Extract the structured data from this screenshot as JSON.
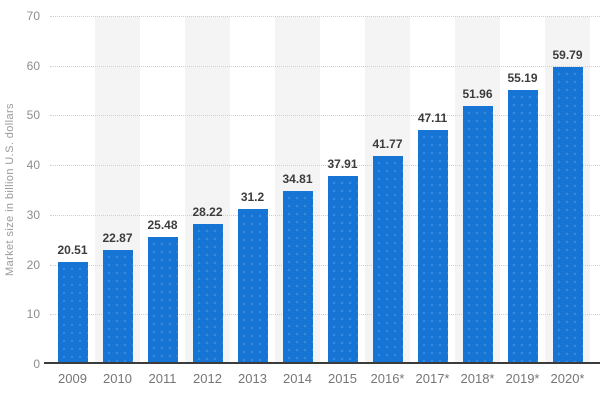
{
  "chart_data": {
    "type": "bar",
    "title": "",
    "xlabel": "",
    "ylabel": "Market size in billion U.S. dollars",
    "categories": [
      "2009",
      "2010",
      "2011",
      "2012",
      "2013",
      "2014",
      "2015",
      "2016*",
      "2017*",
      "2018*",
      "2019*",
      "2020*"
    ],
    "values": [
      20.51,
      22.87,
      25.48,
      28.22,
      31.2,
      34.81,
      37.91,
      41.77,
      47.11,
      51.96,
      55.19,
      59.79
    ],
    "value_labels": [
      "20.51",
      "22.87",
      "25.48",
      "28.22",
      "31.2",
      "34.81",
      "37.91",
      "41.77",
      "47.11",
      "51.96",
      "55.19",
      "59.79"
    ],
    "ylim": [
      0,
      70
    ],
    "yticks": [
      0,
      10,
      20,
      30,
      40,
      50,
      60,
      70
    ],
    "grid": "horizontal-dotted",
    "legend": "none",
    "column_bands": "alternate light-gray bands behind every second category starting with 2010",
    "colors": {
      "bar": "#1574d4",
      "band": "#f4f4f4",
      "gridline": "#cfcfcf",
      "baseline": "#3b3b3b",
      "value_label": "#3c3c3c",
      "y_tick_label": "#8d8d8d",
      "x_tick_label": "#767676",
      "y_axis_title": "#9a9a9a",
      "background": "#ffffff"
    }
  }
}
